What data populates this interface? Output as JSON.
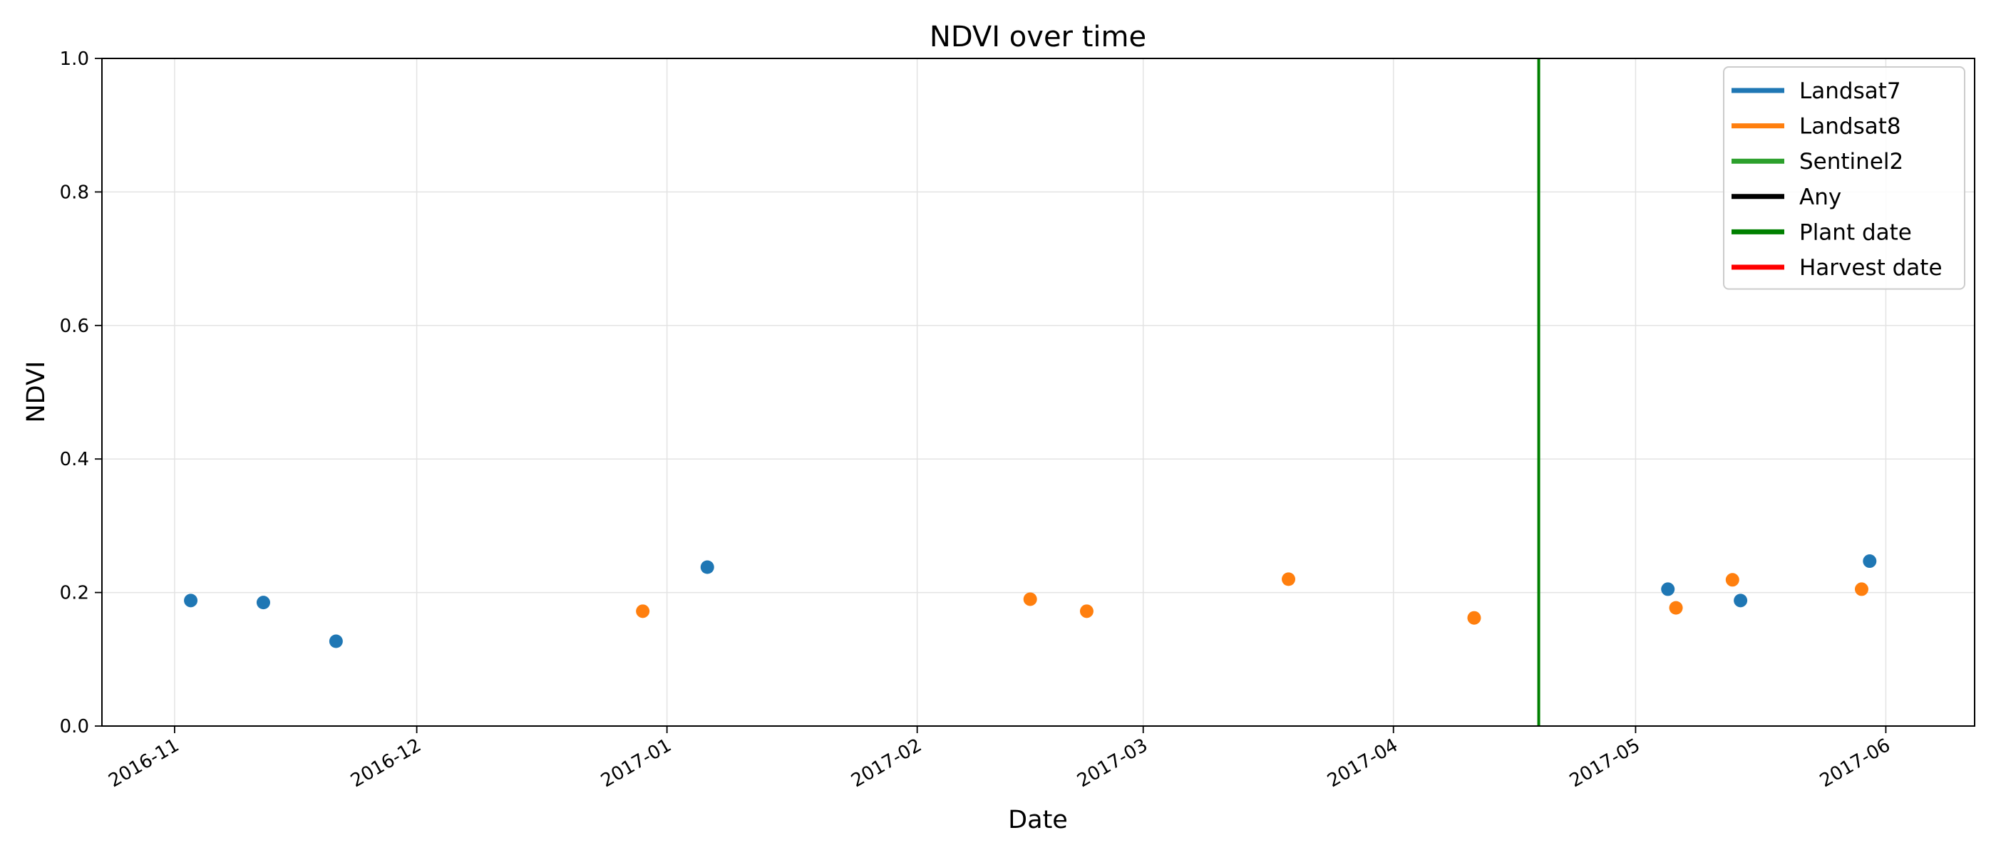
{
  "chart_data": {
    "type": "scatter",
    "title": "NDVI over time",
    "xlabel": "Date",
    "ylabel": "NDVI",
    "xlim": [
      "2016-10-23",
      "2017-06-12"
    ],
    "ylim": [
      0.0,
      1.0
    ],
    "x_ticks": [
      "2016-11-01",
      "2016-12-01",
      "2017-01-01",
      "2017-02-01",
      "2017-03-01",
      "2017-04-01",
      "2017-05-01",
      "2017-06-01"
    ],
    "x_tick_labels": [
      "2016-11",
      "2016-12",
      "2017-01",
      "2017-02",
      "2017-03",
      "2017-04",
      "2017-05",
      "2017-06"
    ],
    "y_ticks": [
      0.0,
      0.2,
      0.4,
      0.6,
      0.8,
      1.0
    ],
    "y_tick_labels": [
      "0.0",
      "0.2",
      "0.4",
      "0.6",
      "0.8",
      "1.0"
    ],
    "grid": true,
    "legend_position": "top-right",
    "series": [
      {
        "name": "Landsat7",
        "color": "#1f77b4",
        "points": [
          {
            "x": "2016-11-03",
            "y": 0.188
          },
          {
            "x": "2016-11-12",
            "y": 0.185
          },
          {
            "x": "2016-11-21",
            "y": 0.127
          },
          {
            "x": "2017-01-06",
            "y": 0.238
          },
          {
            "x": "2017-05-05",
            "y": 0.205
          },
          {
            "x": "2017-05-14",
            "y": 0.188
          },
          {
            "x": "2017-05-30",
            "y": 0.247
          }
        ]
      },
      {
        "name": "Landsat8",
        "color": "#ff7f0e",
        "points": [
          {
            "x": "2016-12-29",
            "y": 0.172
          },
          {
            "x": "2017-02-15",
            "y": 0.19
          },
          {
            "x": "2017-02-22",
            "y": 0.172
          },
          {
            "x": "2017-03-19",
            "y": 0.22
          },
          {
            "x": "2017-04-11",
            "y": 0.162
          },
          {
            "x": "2017-05-06",
            "y": 0.177
          },
          {
            "x": "2017-05-13",
            "y": 0.219
          },
          {
            "x": "2017-05-29",
            "y": 0.205
          }
        ]
      },
      {
        "name": "Sentinel2",
        "color": "#2ca02c",
        "points": []
      },
      {
        "name": "Any",
        "color": "#000000",
        "points": []
      }
    ],
    "vertical_lines": [
      {
        "name": "Plant date",
        "color": "#008000",
        "x": "2017-04-19"
      },
      {
        "name": "Harvest date",
        "color": "#ff0000",
        "x": null
      }
    ],
    "legend": [
      {
        "label": "Landsat7",
        "color": "#1f77b4"
      },
      {
        "label": "Landsat8",
        "color": "#ff7f0e"
      },
      {
        "label": "Sentinel2",
        "color": "#2ca02c"
      },
      {
        "label": "Any",
        "color": "#000000"
      },
      {
        "label": "Plant date",
        "color": "#008000"
      },
      {
        "label": "Harvest date",
        "color": "#ff0000"
      }
    ]
  }
}
